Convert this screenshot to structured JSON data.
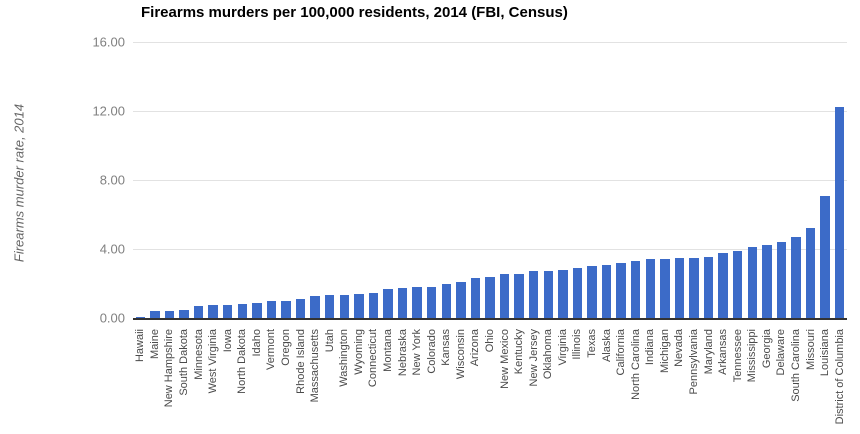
{
  "chart_data": {
    "type": "bar",
    "title": "Firearms murders per 100,000 residents, 2014 (FBI, Census)",
    "ylabel": "Firearms murder rate, 2014",
    "xlabel": "",
    "ylim": [
      0,
      16
    ],
    "yticks": [
      "0.00",
      "4.00",
      "8.00",
      "12.00",
      "16.00"
    ],
    "grid": true,
    "legend_position": "none",
    "bar_color": "#3c6bc8",
    "categories": [
      "Hawaii",
      "Maine",
      "New Hampshire",
      "South Dakota",
      "Minnesota",
      "West Virginia",
      "Iowa",
      "North Dakota",
      "Idaho",
      "Vermont",
      "Oregon",
      "Rhode Island",
      "Massachusetts",
      "Utah",
      "Washington",
      "Wyoming",
      "Connecticut",
      "Montana",
      "Nebraska",
      "New York",
      "Colorado",
      "Kansas",
      "Wisconsin",
      "Arizona",
      "Ohio",
      "New Mexico",
      "Kentucky",
      "New Jersey",
      "Oklahoma",
      "Virginia",
      "Illinois",
      "Texas",
      "Alaska",
      "California",
      "North Carolina",
      "Indiana",
      "Michigan",
      "Nevada",
      "Pennsylvania",
      "Maryland",
      "Arkansas",
      "Tennessee",
      "Mississippi",
      "Georgia",
      "Delaware",
      "South Carolina",
      "Missouri",
      "Louisiana",
      "District of Columbia"
    ],
    "values": [
      0.07,
      0.4,
      0.4,
      0.47,
      0.72,
      0.76,
      0.77,
      0.81,
      0.86,
      0.96,
      0.98,
      1.1,
      1.25,
      1.32,
      1.36,
      1.4,
      1.47,
      1.66,
      1.75,
      1.77,
      1.81,
      1.96,
      2.06,
      2.34,
      2.38,
      2.55,
      2.58,
      2.7,
      2.74,
      2.8,
      2.88,
      3.0,
      3.09,
      3.18,
      3.31,
      3.4,
      3.45,
      3.47,
      3.5,
      3.55,
      3.75,
      3.89,
      4.1,
      4.26,
      4.38,
      4.71,
      5.22,
      7.07,
      12.23
    ]
  }
}
